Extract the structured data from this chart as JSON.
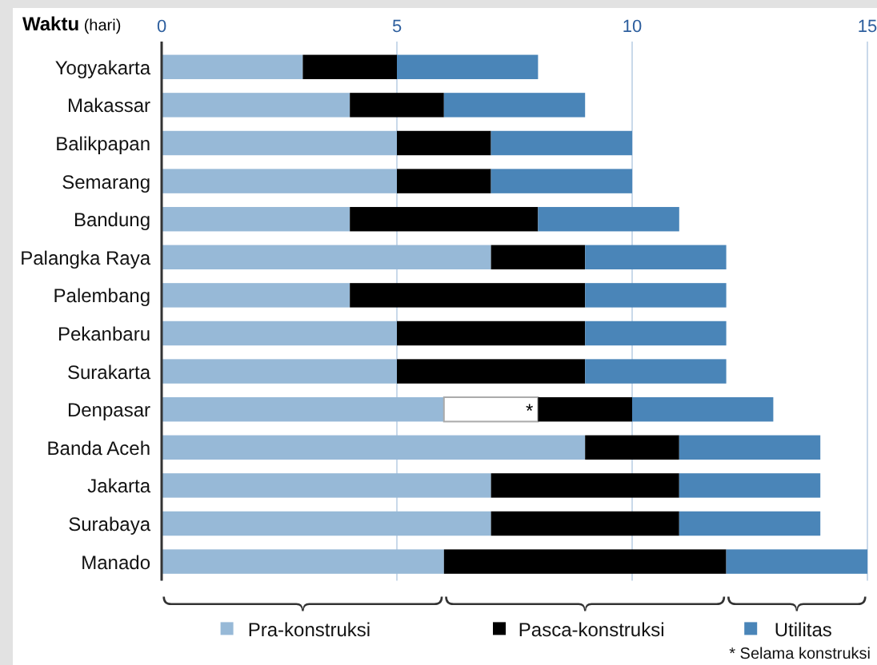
{
  "chart_data": {
    "type": "bar",
    "orientation": "horizontal",
    "stacked": true,
    "xlabel": "Waktu (hari)",
    "categories": [
      "Yogyakarta",
      "Makassar",
      "Balikpapan",
      "Semarang",
      "Bandung",
      "Palangka Raya",
      "Palembang",
      "Pekanbaru",
      "Surakarta",
      "Denpasar",
      "Banda Aceh",
      "Jakarta",
      "Surabaya",
      "Manado"
    ],
    "series": [
      {
        "name": "Pra-konstruksi",
        "color": "#97b9d7",
        "values": [
          3,
          4,
          5,
          5,
          4,
          7,
          4,
          5,
          5,
          6,
          9,
          7,
          7,
          6
        ]
      },
      {
        "color": "#ffffff",
        "values": [
          null,
          null,
          null,
          null,
          null,
          null,
          null,
          null,
          null,
          2,
          null,
          null,
          null,
          null
        ],
        "value_labels": [
          null,
          null,
          null,
          null,
          null,
          null,
          null,
          null,
          null,
          "*",
          null,
          null,
          null,
          null
        ]
      },
      {
        "name": "Pasca-konstruksi",
        "color": "#000000",
        "values": [
          2,
          2,
          2,
          2,
          4,
          2,
          5,
          4,
          4,
          2,
          2,
          4,
          4,
          6
        ]
      },
      {
        "name": "Utilitas",
        "color": "#4a85b8",
        "values": [
          3,
          3,
          3,
          3,
          3,
          3,
          3,
          3,
          3,
          3,
          3,
          3,
          3,
          3
        ]
      }
    ],
    "xlim": [
      0,
      15
    ],
    "xticks": [
      0,
      5,
      10,
      15
    ],
    "grid": "x",
    "legend": "bottom",
    "annotations": [
      "* Selama konstruksi"
    ]
  }
}
